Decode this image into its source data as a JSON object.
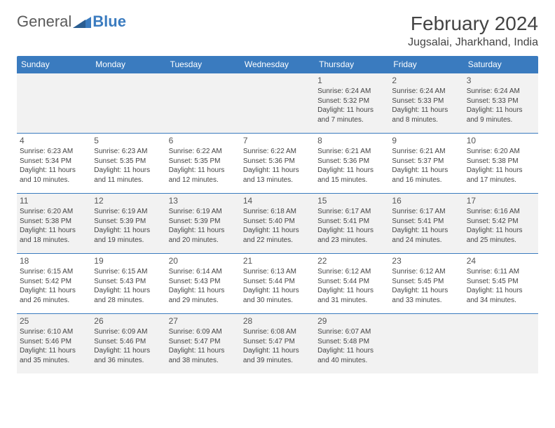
{
  "logo": {
    "text1": "General",
    "text2": "Blue"
  },
  "title": "February 2024",
  "location": "Jugsalai, Jharkhand, India",
  "colors": {
    "header_bg": "#3a7bbf",
    "header_text": "#ffffff",
    "row_alt": "#f2f2f2",
    "text": "#444444"
  },
  "typography": {
    "title_fontsize": 28,
    "location_fontsize": 16,
    "dayheader_fontsize": 12,
    "detail_fontsize": 10
  },
  "day_headers": [
    "Sunday",
    "Monday",
    "Tuesday",
    "Wednesday",
    "Thursday",
    "Friday",
    "Saturday"
  ],
  "weeks": [
    [
      null,
      null,
      null,
      null,
      {
        "n": "1",
        "sr": "6:24 AM",
        "ss": "5:32 PM",
        "dl": "11 hours and 7 minutes."
      },
      {
        "n": "2",
        "sr": "6:24 AM",
        "ss": "5:33 PM",
        "dl": "11 hours and 8 minutes."
      },
      {
        "n": "3",
        "sr": "6:24 AM",
        "ss": "5:33 PM",
        "dl": "11 hours and 9 minutes."
      }
    ],
    [
      {
        "n": "4",
        "sr": "6:23 AM",
        "ss": "5:34 PM",
        "dl": "11 hours and 10 minutes."
      },
      {
        "n": "5",
        "sr": "6:23 AM",
        "ss": "5:35 PM",
        "dl": "11 hours and 11 minutes."
      },
      {
        "n": "6",
        "sr": "6:22 AM",
        "ss": "5:35 PM",
        "dl": "11 hours and 12 minutes."
      },
      {
        "n": "7",
        "sr": "6:22 AM",
        "ss": "5:36 PM",
        "dl": "11 hours and 13 minutes."
      },
      {
        "n": "8",
        "sr": "6:21 AM",
        "ss": "5:36 PM",
        "dl": "11 hours and 15 minutes."
      },
      {
        "n": "9",
        "sr": "6:21 AM",
        "ss": "5:37 PM",
        "dl": "11 hours and 16 minutes."
      },
      {
        "n": "10",
        "sr": "6:20 AM",
        "ss": "5:38 PM",
        "dl": "11 hours and 17 minutes."
      }
    ],
    [
      {
        "n": "11",
        "sr": "6:20 AM",
        "ss": "5:38 PM",
        "dl": "11 hours and 18 minutes."
      },
      {
        "n": "12",
        "sr": "6:19 AM",
        "ss": "5:39 PM",
        "dl": "11 hours and 19 minutes."
      },
      {
        "n": "13",
        "sr": "6:19 AM",
        "ss": "5:39 PM",
        "dl": "11 hours and 20 minutes."
      },
      {
        "n": "14",
        "sr": "6:18 AM",
        "ss": "5:40 PM",
        "dl": "11 hours and 22 minutes."
      },
      {
        "n": "15",
        "sr": "6:17 AM",
        "ss": "5:41 PM",
        "dl": "11 hours and 23 minutes."
      },
      {
        "n": "16",
        "sr": "6:17 AM",
        "ss": "5:41 PM",
        "dl": "11 hours and 24 minutes."
      },
      {
        "n": "17",
        "sr": "6:16 AM",
        "ss": "5:42 PM",
        "dl": "11 hours and 25 minutes."
      }
    ],
    [
      {
        "n": "18",
        "sr": "6:15 AM",
        "ss": "5:42 PM",
        "dl": "11 hours and 26 minutes."
      },
      {
        "n": "19",
        "sr": "6:15 AM",
        "ss": "5:43 PM",
        "dl": "11 hours and 28 minutes."
      },
      {
        "n": "20",
        "sr": "6:14 AM",
        "ss": "5:43 PM",
        "dl": "11 hours and 29 minutes."
      },
      {
        "n": "21",
        "sr": "6:13 AM",
        "ss": "5:44 PM",
        "dl": "11 hours and 30 minutes."
      },
      {
        "n": "22",
        "sr": "6:12 AM",
        "ss": "5:44 PM",
        "dl": "11 hours and 31 minutes."
      },
      {
        "n": "23",
        "sr": "6:12 AM",
        "ss": "5:45 PM",
        "dl": "11 hours and 33 minutes."
      },
      {
        "n": "24",
        "sr": "6:11 AM",
        "ss": "5:45 PM",
        "dl": "11 hours and 34 minutes."
      }
    ],
    [
      {
        "n": "25",
        "sr": "6:10 AM",
        "ss": "5:46 PM",
        "dl": "11 hours and 35 minutes."
      },
      {
        "n": "26",
        "sr": "6:09 AM",
        "ss": "5:46 PM",
        "dl": "11 hours and 36 minutes."
      },
      {
        "n": "27",
        "sr": "6:09 AM",
        "ss": "5:47 PM",
        "dl": "11 hours and 38 minutes."
      },
      {
        "n": "28",
        "sr": "6:08 AM",
        "ss": "5:47 PM",
        "dl": "11 hours and 39 minutes."
      },
      {
        "n": "29",
        "sr": "6:07 AM",
        "ss": "5:48 PM",
        "dl": "11 hours and 40 minutes."
      },
      null,
      null
    ]
  ],
  "labels": {
    "sunrise": "Sunrise:",
    "sunset": "Sunset:",
    "daylight": "Daylight:"
  }
}
